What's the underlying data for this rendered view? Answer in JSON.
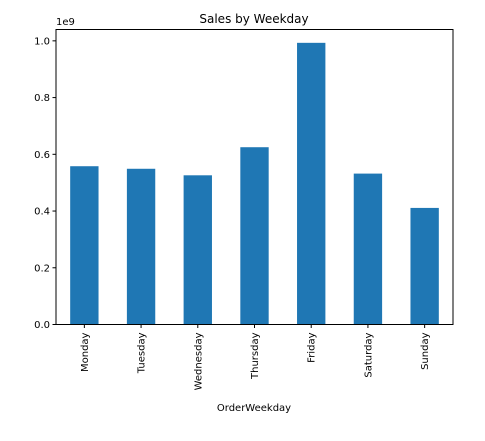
{
  "chart_data": {
    "type": "bar",
    "title": "Sales by Weekday",
    "xlabel": "OrderWeekday",
    "ylabel": "",
    "y_scale_label": "1e9",
    "y_scale": 1000000000,
    "ylim": [
      0,
      1.04
    ],
    "y_ticks": [
      0.0,
      0.2,
      0.4,
      0.6,
      0.8,
      1.0
    ],
    "y_tick_labels": [
      "0.0",
      "0.2",
      "0.4",
      "0.6",
      "0.8",
      "1.0"
    ],
    "categories": [
      "Monday",
      "Tuesday",
      "Wednesday",
      "Thursday",
      "Friday",
      "Saturday",
      "Sunday"
    ],
    "values": [
      0.558,
      0.549,
      0.526,
      0.625,
      0.993,
      0.532,
      0.411
    ],
    "bar_color": "#1f77b4",
    "grid": false,
    "legend": "none"
  }
}
